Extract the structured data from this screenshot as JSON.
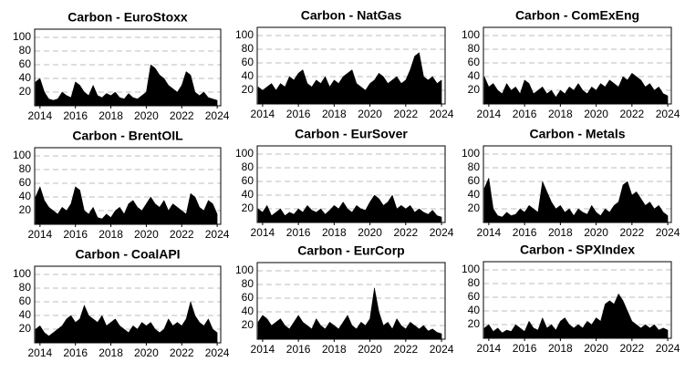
{
  "chart_data": [
    {
      "type": "area",
      "title": "Carbon - EuroStoxx",
      "color": "#000000",
      "grid": true,
      "xlim": [
        2013.7,
        2024.2
      ],
      "ylim": [
        0,
        112
      ],
      "xticks": [
        2014,
        2016,
        2018,
        2020,
        2022,
        2024
      ],
      "yticks": [
        20,
        40,
        60,
        80,
        100
      ],
      "x": [
        2013.75,
        2014,
        2014.25,
        2014.5,
        2014.75,
        2015,
        2015.25,
        2015.5,
        2015.75,
        2016,
        2016.25,
        2016.5,
        2016.75,
        2017,
        2017.25,
        2017.5,
        2017.75,
        2018,
        2018.25,
        2018.5,
        2018.75,
        2019,
        2019.25,
        2019.5,
        2019.75,
        2020,
        2020.25,
        2020.5,
        2020.75,
        2021,
        2021.25,
        2021.5,
        2021.75,
        2022,
        2022.25,
        2022.5,
        2022.75,
        2023,
        2023.25,
        2023.5,
        2023.75,
        2024
      ],
      "values": [
        35,
        40,
        20,
        10,
        8,
        10,
        20,
        15,
        12,
        35,
        30,
        20,
        15,
        30,
        15,
        12,
        18,
        15,
        20,
        12,
        10,
        18,
        12,
        10,
        15,
        20,
        60,
        55,
        45,
        40,
        30,
        25,
        20,
        30,
        50,
        45,
        20,
        15,
        20,
        12,
        10,
        8
      ]
    },
    {
      "type": "area",
      "title": "Carbon - NatGas",
      "color": "#000000",
      "grid": true,
      "xlim": [
        2013.7,
        2024.2
      ],
      "ylim": [
        0,
        112
      ],
      "xticks": [
        2014,
        2016,
        2018,
        2020,
        2022,
        2024
      ],
      "yticks": [
        20,
        40,
        60,
        80,
        100
      ],
      "x": [
        2013.75,
        2014,
        2014.25,
        2014.5,
        2014.75,
        2015,
        2015.25,
        2015.5,
        2015.75,
        2016,
        2016.25,
        2016.5,
        2016.75,
        2017,
        2017.25,
        2017.5,
        2017.75,
        2018,
        2018.25,
        2018.5,
        2018.75,
        2019,
        2019.25,
        2019.5,
        2019.75,
        2020,
        2020.25,
        2020.5,
        2020.75,
        2021,
        2021.25,
        2021.5,
        2021.75,
        2022,
        2022.25,
        2022.5,
        2022.75,
        2023,
        2023.25,
        2023.5,
        2023.75,
        2024
      ],
      "values": [
        25,
        20,
        25,
        30,
        20,
        30,
        25,
        40,
        35,
        45,
        50,
        30,
        25,
        35,
        30,
        40,
        25,
        35,
        30,
        40,
        45,
        50,
        30,
        25,
        20,
        30,
        35,
        45,
        40,
        30,
        35,
        40,
        30,
        35,
        50,
        70,
        75,
        40,
        35,
        40,
        30,
        35
      ]
    },
    {
      "type": "area",
      "title": "Carbon - ComExEng",
      "color": "#000000",
      "grid": true,
      "xlim": [
        2013.7,
        2024.2
      ],
      "ylim": [
        0,
        112
      ],
      "xticks": [
        2014,
        2016,
        2018,
        2020,
        2022,
        2024
      ],
      "yticks": [
        20,
        40,
        60,
        80,
        100
      ],
      "x": [
        2013.75,
        2014,
        2014.25,
        2014.5,
        2014.75,
        2015,
        2015.25,
        2015.5,
        2015.75,
        2016,
        2016.25,
        2016.5,
        2016.75,
        2017,
        2017.25,
        2017.5,
        2017.75,
        2018,
        2018.25,
        2018.5,
        2018.75,
        2019,
        2019.25,
        2019.5,
        2019.75,
        2020,
        2020.25,
        2020.5,
        2020.75,
        2021,
        2021.25,
        2021.5,
        2021.75,
        2022,
        2022.25,
        2022.5,
        2022.75,
        2023,
        2023.25,
        2023.5,
        2023.75,
        2024
      ],
      "values": [
        40,
        25,
        30,
        20,
        15,
        30,
        20,
        25,
        15,
        35,
        30,
        15,
        20,
        25,
        15,
        20,
        10,
        20,
        15,
        25,
        20,
        30,
        20,
        15,
        25,
        20,
        30,
        25,
        35,
        30,
        25,
        40,
        35,
        45,
        40,
        35,
        25,
        30,
        20,
        25,
        15,
        12
      ]
    },
    {
      "type": "area",
      "title": "Carbon - BrentOIL",
      "color": "#000000",
      "grid": true,
      "xlim": [
        2013.7,
        2024.2
      ],
      "ylim": [
        0,
        112
      ],
      "xticks": [
        2014,
        2016,
        2018,
        2020,
        2022,
        2024
      ],
      "yticks": [
        20,
        40,
        60,
        80,
        100
      ],
      "x": [
        2013.75,
        2014,
        2014.25,
        2014.5,
        2014.75,
        2015,
        2015.25,
        2015.5,
        2015.75,
        2016,
        2016.25,
        2016.5,
        2016.75,
        2017,
        2017.25,
        2017.5,
        2017.75,
        2018,
        2018.25,
        2018.5,
        2018.75,
        2019,
        2019.25,
        2019.5,
        2019.75,
        2020,
        2020.25,
        2020.5,
        2020.75,
        2021,
        2021.25,
        2021.5,
        2021.75,
        2022,
        2022.25,
        2022.5,
        2022.75,
        2023,
        2023.25,
        2023.5,
        2023.75,
        2024
      ],
      "values": [
        40,
        55,
        35,
        25,
        20,
        15,
        25,
        20,
        30,
        55,
        50,
        20,
        15,
        25,
        10,
        8,
        15,
        10,
        20,
        25,
        15,
        30,
        35,
        25,
        20,
        30,
        40,
        30,
        25,
        35,
        20,
        30,
        25,
        20,
        15,
        45,
        40,
        25,
        20,
        35,
        30,
        15
      ]
    },
    {
      "type": "area",
      "title": "Carbon - EurSover",
      "color": "#000000",
      "grid": true,
      "xlim": [
        2013.7,
        2024.2
      ],
      "ylim": [
        0,
        112
      ],
      "xticks": [
        2014,
        2016,
        2018,
        2020,
        2022,
        2024
      ],
      "yticks": [
        20,
        40,
        60,
        80,
        100
      ],
      "x": [
        2013.75,
        2014,
        2014.25,
        2014.5,
        2014.75,
        2015,
        2015.25,
        2015.5,
        2015.75,
        2016,
        2016.25,
        2016.5,
        2016.75,
        2017,
        2017.25,
        2017.5,
        2017.75,
        2018,
        2018.25,
        2018.5,
        2018.75,
        2019,
        2019.25,
        2019.5,
        2019.75,
        2020,
        2020.25,
        2020.5,
        2020.75,
        2021,
        2021.25,
        2021.5,
        2021.75,
        2022,
        2022.25,
        2022.5,
        2022.75,
        2023,
        2023.25,
        2023.5,
        2023.75,
        2024
      ],
      "values": [
        20,
        15,
        25,
        10,
        15,
        20,
        10,
        15,
        12,
        20,
        15,
        25,
        18,
        15,
        20,
        12,
        18,
        25,
        20,
        30,
        20,
        15,
        25,
        20,
        18,
        30,
        40,
        35,
        25,
        30,
        40,
        20,
        25,
        20,
        25,
        15,
        20,
        15,
        12,
        18,
        10,
        8
      ]
    },
    {
      "type": "area",
      "title": "Carbon - Metals",
      "color": "#000000",
      "grid": true,
      "xlim": [
        2013.7,
        2024.2
      ],
      "ylim": [
        0,
        112
      ],
      "xticks": [
        2014,
        2016,
        2018,
        2020,
        2022,
        2024
      ],
      "yticks": [
        20,
        40,
        60,
        80,
        100
      ],
      "x": [
        2013.75,
        2014,
        2014.25,
        2014.5,
        2014.75,
        2015,
        2015.25,
        2015.5,
        2015.75,
        2016,
        2016.25,
        2016.5,
        2016.75,
        2017,
        2017.25,
        2017.5,
        2017.75,
        2018,
        2018.25,
        2018.5,
        2018.75,
        2019,
        2019.25,
        2019.5,
        2019.75,
        2020,
        2020.25,
        2020.5,
        2020.75,
        2021,
        2021.25,
        2021.5,
        2021.75,
        2022,
        2022.25,
        2022.5,
        2022.75,
        2023,
        2023.25,
        2023.5,
        2023.75,
        2024
      ],
      "values": [
        50,
        65,
        20,
        10,
        8,
        15,
        10,
        12,
        20,
        15,
        25,
        20,
        15,
        60,
        45,
        30,
        20,
        25,
        15,
        20,
        10,
        20,
        15,
        12,
        25,
        15,
        10,
        20,
        15,
        25,
        30,
        55,
        60,
        40,
        45,
        35,
        25,
        30,
        20,
        25,
        15,
        10
      ]
    },
    {
      "type": "area",
      "title": "Carbon - CoalAPI",
      "color": "#000000",
      "grid": true,
      "xlim": [
        2013.7,
        2024.2
      ],
      "ylim": [
        0,
        112
      ],
      "xticks": [
        2014,
        2016,
        2018,
        2020,
        2022,
        2024
      ],
      "yticks": [
        20,
        40,
        60,
        80,
        100
      ],
      "x": [
        2013.75,
        2014,
        2014.25,
        2014.5,
        2014.75,
        2015,
        2015.25,
        2015.5,
        2015.75,
        2016,
        2016.25,
        2016.5,
        2016.75,
        2017,
        2017.25,
        2017.5,
        2017.75,
        2018,
        2018.25,
        2018.5,
        2018.75,
        2019,
        2019.25,
        2019.5,
        2019.75,
        2020,
        2020.25,
        2020.5,
        2020.75,
        2021,
        2021.25,
        2021.5,
        2021.75,
        2022,
        2022.25,
        2022.5,
        2022.75,
        2023,
        2023.25,
        2023.5,
        2023.75,
        2024
      ],
      "values": [
        20,
        25,
        15,
        10,
        15,
        20,
        25,
        35,
        40,
        30,
        35,
        55,
        40,
        35,
        30,
        40,
        25,
        30,
        35,
        25,
        20,
        15,
        25,
        20,
        30,
        25,
        30,
        20,
        15,
        20,
        35,
        25,
        30,
        25,
        35,
        60,
        40,
        30,
        25,
        35,
        20,
        15
      ]
    },
    {
      "type": "area",
      "title": "Carbon - EurCorp",
      "color": "#000000",
      "grid": true,
      "xlim": [
        2013.7,
        2024.2
      ],
      "ylim": [
        0,
        112
      ],
      "xticks": [
        2014,
        2016,
        2018,
        2020,
        2022,
        2024
      ],
      "yticks": [
        20,
        40,
        60,
        80,
        100
      ],
      "x": [
        2013.75,
        2014,
        2014.25,
        2014.5,
        2014.75,
        2015,
        2015.25,
        2015.5,
        2015.75,
        2016,
        2016.25,
        2016.5,
        2016.75,
        2017,
        2017.25,
        2017.5,
        2017.75,
        2018,
        2018.25,
        2018.5,
        2018.75,
        2019,
        2019.25,
        2019.5,
        2019.75,
        2020,
        2020.25,
        2020.5,
        2020.75,
        2021,
        2021.25,
        2021.5,
        2021.75,
        2022,
        2022.25,
        2022.5,
        2022.75,
        2023,
        2023.25,
        2023.5,
        2023.75,
        2024
      ],
      "values": [
        25,
        35,
        30,
        20,
        25,
        30,
        20,
        15,
        25,
        35,
        25,
        20,
        15,
        30,
        20,
        15,
        25,
        20,
        15,
        25,
        35,
        20,
        15,
        25,
        20,
        30,
        75,
        40,
        20,
        25,
        15,
        30,
        20,
        15,
        25,
        20,
        15,
        20,
        12,
        15,
        10,
        8
      ]
    },
    {
      "type": "area",
      "title": "Carbon - SPXIndex",
      "color": "#000000",
      "grid": true,
      "xlim": [
        2013.7,
        2024.2
      ],
      "ylim": [
        0,
        112
      ],
      "xticks": [
        2014,
        2016,
        2018,
        2020,
        2022,
        2024
      ],
      "yticks": [
        20,
        40,
        60,
        80,
        100
      ],
      "x": [
        2013.75,
        2014,
        2014.25,
        2014.5,
        2014.75,
        2015,
        2015.25,
        2015.5,
        2015.75,
        2016,
        2016.25,
        2016.5,
        2016.75,
        2017,
        2017.25,
        2017.5,
        2017.75,
        2018,
        2018.25,
        2018.5,
        2018.75,
        2019,
        2019.25,
        2019.5,
        2019.75,
        2020,
        2020.25,
        2020.5,
        2020.75,
        2021,
        2021.25,
        2021.5,
        2021.75,
        2022,
        2022.25,
        2022.5,
        2022.75,
        2023,
        2023.25,
        2023.5,
        2023.75,
        2024
      ],
      "values": [
        15,
        20,
        10,
        15,
        8,
        12,
        10,
        20,
        15,
        10,
        25,
        15,
        12,
        30,
        15,
        20,
        12,
        25,
        30,
        20,
        15,
        20,
        15,
        25,
        20,
        30,
        25,
        50,
        55,
        50,
        65,
        55,
        40,
        25,
        20,
        15,
        20,
        15,
        20,
        12,
        15,
        12
      ]
    }
  ]
}
